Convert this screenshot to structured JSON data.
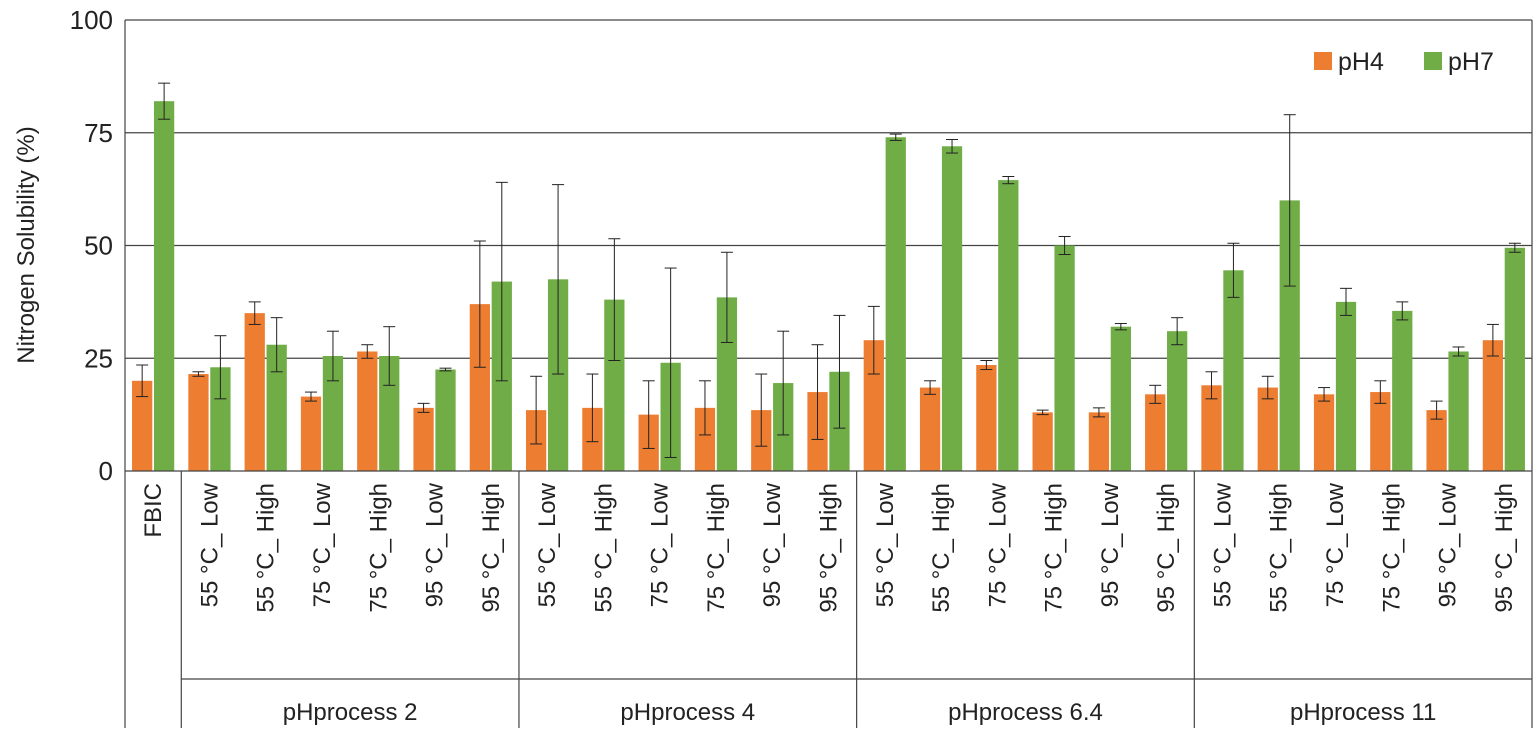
{
  "chart_data": {
    "type": "bar",
    "ylabel": "Nitrogen Solubility (%)",
    "ylim": [
      0,
      100
    ],
    "yticks": [
      0,
      25,
      50,
      75,
      100
    ],
    "grid": true,
    "legend_position": "top-right",
    "series": [
      {
        "name": "pH4",
        "color": "#ED7D31",
        "values": [
          20,
          21.5,
          35,
          16.5,
          26.5,
          14,
          37,
          13.5,
          14,
          12.5,
          14,
          13.5,
          17.5,
          29,
          18.5,
          23.5,
          13,
          13,
          17,
          19,
          18.5,
          17,
          17.5,
          13.5,
          29
        ],
        "errors": [
          3.5,
          0.5,
          2.5,
          1,
          1.5,
          1,
          14,
          7.5,
          7.5,
          7.5,
          6,
          8,
          10.5,
          7.5,
          1.5,
          1,
          0.5,
          1,
          2,
          3,
          2.5,
          1.5,
          2.5,
          2,
          3.5
        ]
      },
      {
        "name": "pH7",
        "color": "#70AD47",
        "values": [
          82,
          23,
          28,
          25.5,
          25.5,
          22.5,
          42,
          42.5,
          38,
          24,
          38.5,
          19.5,
          22,
          74,
          72,
          64.5,
          50,
          32,
          31,
          44.5,
          60,
          37.5,
          35.5,
          26.5,
          49.5
        ],
        "errors": [
          4,
          7,
          6,
          5.5,
          6.5,
          0.3,
          22,
          21,
          13.5,
          21,
          10,
          11.5,
          12.5,
          0.7,
          1.5,
          0.8,
          2,
          0.7,
          3,
          6,
          19,
          3,
          2,
          1,
          1
        ]
      }
    ],
    "categories": [
      "FBIC",
      "55 °C_ Low",
      "55 °C_ High",
      "75 °C_ Low",
      "75 °C_ High",
      "95 °C_ Low",
      "95 °C_ High",
      "55 °C_ Low",
      "55 °C_ High",
      "75 °C_ Low",
      "75 °C_ High",
      "95 °C_ Low",
      "95 °C_ High",
      "55 °C_ Low",
      "55 °C_ High",
      "75 °C_ Low",
      "75 °C_ High",
      "95 °C_ Low",
      "95 °C_ High",
      "55 °C_ Low",
      "55 °C_ High",
      "75 °C_ Low",
      "75 °C_ High",
      "95 °C_ Low",
      "95 °C_ High"
    ],
    "groups": [
      {
        "label": "",
        "count": 1
      },
      {
        "label": "pHprocess 2",
        "count": 6
      },
      {
        "label": "pHprocess 4",
        "count": 6
      },
      {
        "label": "pHprocess 6.4",
        "count": 6
      },
      {
        "label": "pHprocess 11",
        "count": 6
      }
    ]
  }
}
